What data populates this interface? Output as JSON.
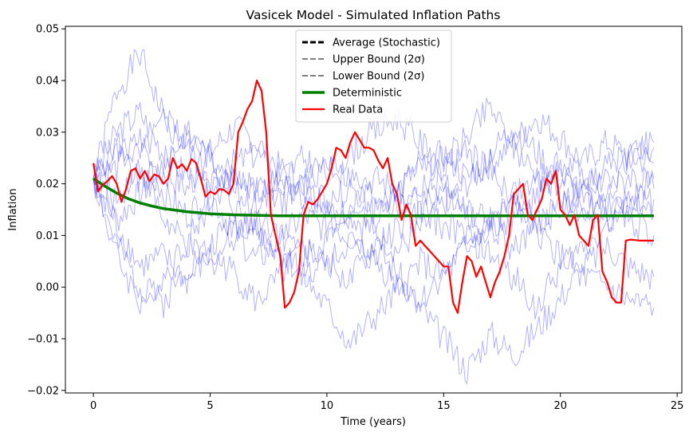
{
  "chart_data": {
    "type": "line",
    "title": "Vasicek Model - Simulated Inflation Paths",
    "xlabel": "Time (years)",
    "ylabel": "Inflation",
    "xlim": [
      -1.2,
      25.2
    ],
    "ylim": [
      -0.0205,
      0.0505
    ],
    "x_ticks": [
      0,
      5,
      10,
      15,
      20,
      25
    ],
    "y_ticks": [
      -0.02,
      -0.01,
      0.0,
      0.01,
      0.02,
      0.03,
      0.04,
      0.05
    ],
    "x_tick_labels": [
      "0",
      "5",
      "10",
      "15",
      "20",
      "25"
    ],
    "y_tick_labels": [
      "−0.02",
      "−0.01",
      "0.00",
      "0.01",
      "0.02",
      "0.03",
      "0.04",
      "0.05"
    ],
    "legend_position": "upper center",
    "grid": false,
    "legend": [
      {
        "label": "Average (Stochastic)",
        "color": "#000000",
        "style": "dashed",
        "width": 3
      },
      {
        "label": "Upper Bound (2σ)",
        "color": "#808080",
        "style": "dashed",
        "width": 2
      },
      {
        "label": "Lower Bound (2σ)",
        "color": "#808080",
        "style": "dashed",
        "width": 2
      },
      {
        "label": "Deterministic",
        "color": "#008000",
        "style": "solid",
        "width": 3.5
      },
      {
        "label": "Real Data",
        "color": "#ff0000",
        "style": "solid",
        "width": 2.2
      }
    ],
    "simulated_paths": {
      "color": "#0000ff",
      "opacity": 0.3,
      "paths": [
        {
          "x": [
            0,
            1,
            2,
            3,
            4,
            5,
            6,
            7,
            8,
            9,
            10,
            11,
            12,
            13,
            14,
            15,
            16,
            17,
            18,
            19,
            20,
            21,
            22,
            23,
            24
          ],
          "y": [
            0.021,
            0.038,
            0.045,
            0.033,
            0.029,
            0.025,
            0.021,
            0.018,
            0.022,
            0.019,
            0.016,
            0.019,
            0.015,
            0.018,
            0.016,
            0.021,
            0.014,
            0.013,
            0.016,
            0.012,
            0.016,
            0.014,
            0.013,
            0.016,
            0.014
          ]
        },
        {
          "x": [
            0,
            1,
            2,
            3,
            4,
            5,
            6,
            7,
            8,
            9,
            10,
            11,
            12,
            13,
            14,
            15,
            16,
            17,
            18,
            19,
            20,
            21,
            22,
            23,
            24
          ],
          "y": [
            0.021,
            0.008,
            0.0,
            -0.003,
            0.004,
            0.008,
            0.013,
            0.011,
            0.006,
            0.003,
            0.005,
            0.001,
            0.008,
            0.011,
            0.015,
            0.012,
            0.01,
            0.006,
            0.002,
            -0.004,
            0.004,
            0.008,
            0.012,
            0.015,
            0.017
          ]
        },
        {
          "x": [
            0,
            1,
            2,
            3,
            4,
            5,
            6,
            7,
            8,
            9,
            10,
            11,
            12,
            13,
            14,
            15,
            16,
            17,
            18,
            19,
            20,
            21,
            22,
            23,
            24
          ],
          "y": [
            0.021,
            0.03,
            0.034,
            0.026,
            0.022,
            0.019,
            0.024,
            0.026,
            0.02,
            0.017,
            0.013,
            0.01,
            0.008,
            0.003,
            -0.004,
            -0.01,
            -0.016,
            -0.009,
            -0.013,
            -0.008,
            -0.002,
            0.004,
            0.008,
            0.004,
            0.002
          ]
        },
        {
          "x": [
            0,
            1,
            2,
            3,
            4,
            5,
            6,
            7,
            8,
            9,
            10,
            11,
            12,
            13,
            14,
            15,
            16,
            17,
            18,
            19,
            20,
            21,
            22,
            23,
            24
          ],
          "y": [
            0.021,
            0.006,
            -0.003,
            0.002,
            0.009,
            0.016,
            0.022,
            0.019,
            0.016,
            0.02,
            0.024,
            0.021,
            0.018,
            0.015,
            0.019,
            0.023,
            0.026,
            0.022,
            0.018,
            0.02,
            0.024,
            0.022,
            0.02,
            0.024,
            0.027
          ]
        },
        {
          "x": [
            0,
            1,
            2,
            3,
            4,
            5,
            6,
            7,
            8,
            9,
            10,
            11,
            12,
            13,
            14,
            15,
            16,
            17,
            18,
            19,
            20,
            21,
            22,
            23,
            24
          ],
          "y": [
            0.021,
            0.028,
            0.025,
            0.032,
            0.027,
            0.021,
            0.016,
            0.011,
            0.007,
            0.002,
            -0.004,
            -0.011,
            -0.006,
            -0.001,
            0.005,
            0.002,
            0.008,
            0.013,
            0.016,
            0.012,
            0.015,
            0.019,
            0.016,
            0.013,
            0.01
          ]
        },
        {
          "x": [
            0,
            1,
            2,
            3,
            4,
            5,
            6,
            7,
            8,
            9,
            10,
            11,
            12,
            13,
            14,
            15,
            16,
            17,
            18,
            19,
            20,
            21,
            22,
            23,
            24
          ],
          "y": [
            0.021,
            0.023,
            0.029,
            0.018,
            0.014,
            0.018,
            0.011,
            0.005,
            0.009,
            0.014,
            0.011,
            0.016,
            0.021,
            0.019,
            0.023,
            0.026,
            0.021,
            0.026,
            0.031,
            0.026,
            0.021,
            0.018,
            0.015,
            0.017,
            0.021
          ]
        },
        {
          "x": [
            0,
            1,
            2,
            3,
            4,
            5,
            6,
            7,
            8,
            9,
            10,
            11,
            12,
            13,
            14,
            15,
            16,
            17,
            18,
            19,
            20,
            21,
            22,
            23,
            24
          ],
          "y": [
            0.021,
            0.013,
            0.018,
            0.022,
            0.019,
            0.026,
            0.031,
            0.028,
            0.023,
            0.02,
            0.017,
            0.014,
            0.011,
            0.007,
            0.011,
            0.016,
            0.02,
            0.024,
            0.028,
            0.033,
            0.029,
            0.024,
            0.028,
            0.025,
            0.024
          ]
        },
        {
          "x": [
            0,
            1,
            2,
            3,
            4,
            5,
            6,
            7,
            8,
            9,
            10,
            11,
            12,
            13,
            14,
            15,
            16,
            17,
            18,
            19,
            20,
            21,
            22,
            23,
            24
          ],
          "y": [
            0.021,
            0.012,
            0.004,
            0.006,
            0.001,
            0.006,
            0.003,
            -0.003,
            0.002,
            0.008,
            0.004,
            0.009,
            0.005,
            0.001,
            -0.003,
            0.003,
            0.008,
            0.012,
            0.007,
            0.011,
            0.006,
            0.002,
            0.0,
            -0.003,
            -0.004
          ]
        },
        {
          "x": [
            0,
            1,
            2,
            3,
            4,
            5,
            6,
            7,
            8,
            9,
            10,
            11,
            12,
            13,
            14,
            15,
            16,
            17,
            18,
            19,
            20,
            21,
            22,
            23,
            24
          ],
          "y": [
            0.021,
            0.026,
            0.02,
            0.024,
            0.03,
            0.025,
            0.019,
            0.016,
            0.021,
            0.025,
            0.022,
            0.026,
            0.03,
            0.033,
            0.028,
            0.024,
            0.029,
            0.035,
            0.027,
            0.022,
            0.018,
            0.014,
            0.018,
            0.022,
            0.019
          ]
        },
        {
          "x": [
            0,
            1,
            2,
            3,
            4,
            5,
            6,
            7,
            8,
            9,
            10,
            11,
            12,
            13,
            14,
            15,
            16,
            17,
            18,
            19,
            20,
            21,
            22,
            23,
            24
          ],
          "y": [
            0.021,
            0.017,
            0.024,
            0.013,
            0.008,
            0.004,
            0.01,
            0.014,
            0.011,
            0.006,
            0.01,
            0.016,
            0.013,
            0.019,
            0.024,
            0.018,
            0.014,
            0.01,
            0.013,
            0.017,
            0.022,
            0.019,
            0.023,
            0.026,
            0.028
          ]
        }
      ]
    },
    "series": [
      {
        "name": "Deterministic",
        "color": "#008000",
        "x": [
          0,
          0.5,
          1,
          1.5,
          2,
          2.5,
          3,
          3.5,
          4,
          5,
          6,
          7,
          8,
          10,
          12,
          14,
          16,
          18,
          20,
          22,
          24
        ],
        "y": [
          0.021,
          0.0195,
          0.0182,
          0.0171,
          0.0163,
          0.0157,
          0.0152,
          0.0149,
          0.0146,
          0.0142,
          0.014,
          0.0139,
          0.0138,
          0.0138,
          0.0138,
          0.0138,
          0.0138,
          0.0138,
          0.0138,
          0.0138,
          0.0138
        ]
      },
      {
        "name": "Real Data",
        "color": "#ff0000",
        "x": [
          0,
          0.2,
          0.4,
          0.6,
          0.8,
          1.0,
          1.2,
          1.4,
          1.6,
          1.8,
          2.0,
          2.2,
          2.4,
          2.6,
          2.8,
          3.0,
          3.2,
          3.4,
          3.6,
          3.8,
          4.0,
          4.2,
          4.4,
          4.6,
          4.8,
          5.0,
          5.2,
          5.4,
          5.6,
          5.8,
          6.0,
          6.2,
          6.4,
          6.6,
          6.8,
          7.0,
          7.2,
          7.4,
          7.6,
          7.8,
          8.0,
          8.2,
          8.4,
          8.6,
          8.8,
          9.0,
          9.2,
          9.4,
          9.6,
          9.8,
          10.0,
          10.2,
          10.4,
          10.6,
          10.8,
          11.0,
          11.2,
          11.4,
          11.6,
          11.8,
          12.0,
          12.2,
          12.4,
          12.6,
          12.8,
          13.0,
          13.2,
          13.4,
          13.6,
          13.8,
          14.0,
          14.2,
          14.4,
          14.6,
          14.8,
          15.0,
          15.2,
          15.4,
          15.6,
          15.8,
          16.0,
          16.2,
          16.4,
          16.6,
          16.8,
          17.0,
          17.2,
          17.4,
          17.6,
          17.8,
          18.0,
          18.2,
          18.4,
          18.6,
          18.8,
          19.0,
          19.2,
          19.4,
          19.6,
          19.8,
          20.0,
          20.2,
          20.4,
          20.6,
          20.8,
          21.0,
          21.2,
          21.4,
          21.6,
          21.8,
          22.0,
          22.2,
          22.4,
          22.6,
          22.8,
          23.0,
          23.2,
          23.4,
          23.6,
          23.8,
          24.0
        ],
        "y": [
          0.024,
          0.0185,
          0.0198,
          0.0205,
          0.0215,
          0.02,
          0.0165,
          0.019,
          0.0225,
          0.023,
          0.021,
          0.0225,
          0.0205,
          0.0218,
          0.0215,
          0.02,
          0.021,
          0.025,
          0.023,
          0.0238,
          0.0225,
          0.0248,
          0.024,
          0.021,
          0.0175,
          0.0185,
          0.018,
          0.019,
          0.0188,
          0.018,
          0.02,
          0.03,
          0.032,
          0.0345,
          0.036,
          0.04,
          0.038,
          0.03,
          0.014,
          0.01,
          0.006,
          -0.004,
          -0.003,
          -0.001,
          0.003,
          0.014,
          0.0165,
          0.016,
          0.017,
          0.0185,
          0.02,
          0.023,
          0.027,
          0.0265,
          0.025,
          0.028,
          0.03,
          0.0285,
          0.027,
          0.027,
          0.0265,
          0.0245,
          0.023,
          0.025,
          0.02,
          0.018,
          0.013,
          0.016,
          0.014,
          0.008,
          0.009,
          0.008,
          0.007,
          0.006,
          0.005,
          0.004,
          0.004,
          -0.003,
          -0.005,
          0.001,
          0.006,
          0.005,
          0.002,
          0.004,
          0.001,
          -0.002,
          0.001,
          0.003,
          0.006,
          0.01,
          0.018,
          0.019,
          0.02,
          0.014,
          0.013,
          0.015,
          0.017,
          0.021,
          0.02,
          0.0225,
          0.015,
          0.014,
          0.012,
          0.014,
          0.01,
          0.009,
          0.008,
          0.013,
          0.014,
          0.003,
          0.001,
          -0.002,
          -0.003,
          -0.003,
          0.009,
          0.0092,
          0.0091,
          0.009,
          0.009,
          0.009,
          0.009
        ]
      }
    ]
  }
}
